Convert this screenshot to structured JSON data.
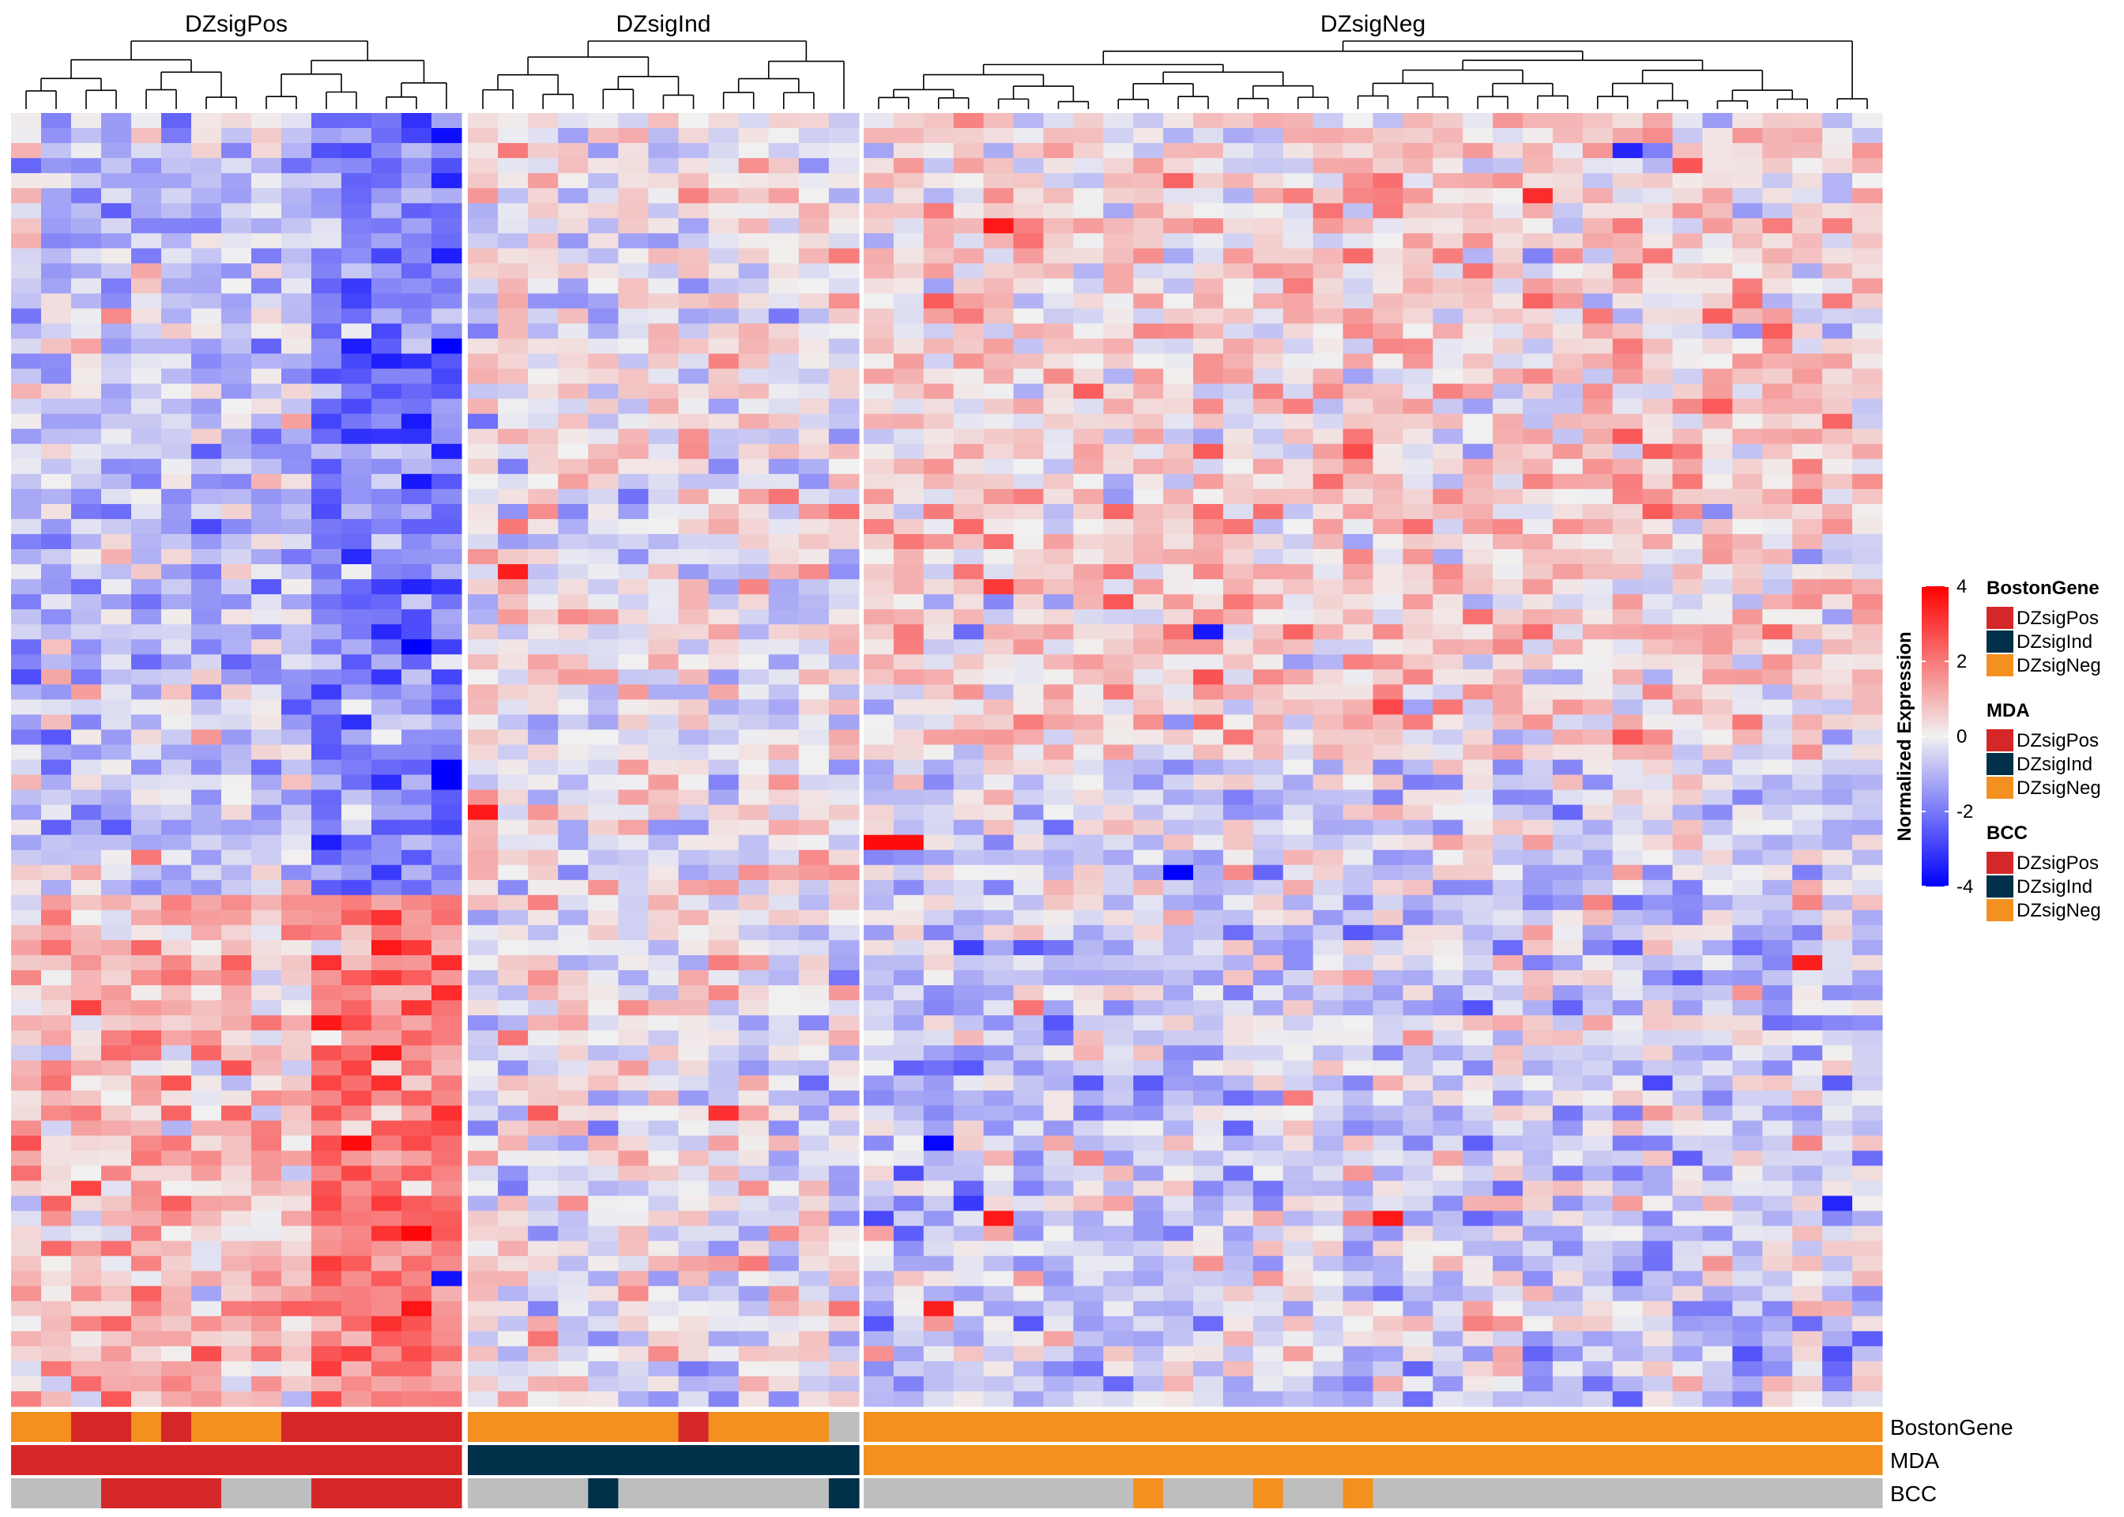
{
  "chart_data": {
    "type": "heatmap",
    "title": "",
    "groups": [
      "DZsigPos",
      "DZsigInd",
      "DZsigNeg"
    ],
    "colorbar": {
      "title": "Normalized Expression",
      "range": [
        -4,
        4
      ],
      "ticks": [
        "4",
        "2",
        "0",
        "-2",
        "-4"
      ],
      "low": "#0000ff",
      "mid": "#f1f1f1",
      "high": "#ff0000"
    },
    "annotation_rows": [
      {
        "name": "BostonGene",
        "runs": [
          {
            "group": "DZsigPos",
            "cat": [
              "O",
              "O",
              "R",
              "R",
              "O",
              "R",
              "O",
              "O",
              "O",
              "R",
              "R",
              "R",
              "R",
              "R",
              "R"
            ]
          },
          {
            "group": "DZsigInd",
            "cat": [
              "O",
              "O",
              "O",
              "O",
              "O",
              "O",
              "O",
              "R",
              "O",
              "O",
              "O",
              "O",
              "G"
            ]
          },
          {
            "group": "DZsigNeg",
            "cat": "O"
          }
        ]
      },
      {
        "name": "MDA",
        "runs": [
          {
            "group": "DZsigPos",
            "cat": "R"
          },
          {
            "group": "DZsigInd",
            "cat": "N"
          },
          {
            "group": "DZsigNeg",
            "cat": "O"
          }
        ]
      },
      {
        "name": "BCC",
        "runs": [
          {
            "group": "DZsigPos",
            "cat": [
              "G",
              "G",
              "G",
              "R",
              "R",
              "R",
              "R",
              "G",
              "G",
              "G",
              "R",
              "R",
              "R",
              "R",
              "R"
            ]
          },
          {
            "group": "DZsigInd",
            "cat": [
              "G",
              "G",
              "G",
              "G",
              "N",
              "G",
              "G",
              "G",
              "G",
              "G",
              "G",
              "G",
              "N"
            ]
          },
          {
            "group": "DZsigNeg",
            "cat": [
              "G",
              "G",
              "G",
              "G",
              "G",
              "G",
              "G",
              "G",
              "G",
              "O",
              "G",
              "G",
              "G",
              "O",
              "G",
              "G",
              "O",
              "G",
              "G",
              "G",
              "G",
              "G",
              "G",
              "G",
              "G",
              "G",
              "G",
              "G",
              "G",
              "G",
              "G",
              "G",
              "G",
              "G"
            ]
          }
        ]
      }
    ],
    "legends": [
      {
        "title": "BostonGene",
        "items": [
          "DZsigPos",
          "DZsigInd",
          "DZsigNeg"
        ]
      },
      {
        "title": "MDA",
        "items": [
          "DZsigPos",
          "DZsigInd",
          "DZsigNeg"
        ]
      },
      {
        "title": "BCC",
        "items": [
          "DZsigPos",
          "DZsigInd",
          "DZsigNeg"
        ]
      }
    ],
    "category_colors": {
      "R": "#d62728",
      "N": "#00304a",
      "O": "#f39020",
      "G": "#bebebe"
    },
    "n_rows": 86,
    "columns_per_group": [
      15,
      13,
      34
    ],
    "dendrogram": "hierarchical clustering of samples within each group (shown, values not printed)",
    "values_note": "cell values are z-scored expression in [-4,4]; individual values are not printed on the figure",
    "matrix": {
      "blocks": [
        {
          "group": "DZsigPos",
          "rows": [
            0,
            51
          ],
          "cols": [
            [
              0,
              9,
              -0.7
            ],
            [
              10,
              14,
              -1.9
            ]
          ]
        },
        {
          "group": "DZsigPos",
          "rows": [
            52,
            85
          ],
          "cols": [
            [
              0,
              9,
              0.8
            ],
            [
              10,
              14,
              1.9
            ]
          ]
        },
        {
          "group": "DZsigInd",
          "rows": [
            0,
            85
          ],
          "cols": [
            [
              0,
              12,
              0.0
            ]
          ]
        },
        {
          "group": "DZsigNeg",
          "rows": [
            0,
            42
          ],
          "cols": [
            [
              0,
              33,
              0.5
            ]
          ]
        },
        {
          "group": "DZsigNeg",
          "rows": [
            43,
            85
          ],
          "cols": [
            [
              0,
              33,
              -0.5
            ]
          ]
        }
      ],
      "notable_cells": [
        {
          "group": "DZsigPos",
          "row": 1,
          "col": 14,
          "v": -3.8
        },
        {
          "group": "DZsigPos",
          "row": 9,
          "col": 14,
          "v": -3.5
        },
        {
          "group": "DZsigPos",
          "row": 24,
          "col": 13,
          "v": -3.6
        },
        {
          "group": "DZsigPos",
          "row": 60,
          "col": 10,
          "v": 3.6
        },
        {
          "group": "DZsigPos",
          "row": 62,
          "col": 12,
          "v": 3.5
        },
        {
          "group": "DZsigPos",
          "row": 77,
          "col": 14,
          "v": -3.7
        },
        {
          "group": "DZsigInd",
          "row": 66,
          "col": 8,
          "v": 3.2
        },
        {
          "group": "DZsigInd",
          "row": 30,
          "col": 1,
          "v": 3.5
        },
        {
          "group": "DZsigInd",
          "row": 46,
          "col": 0,
          "v": 3.6
        },
        {
          "group": "DZsigNeg",
          "row": 7,
          "col": 4,
          "v": 3.6
        },
        {
          "group": "DZsigNeg",
          "row": 2,
          "col": 25,
          "v": -3.4
        },
        {
          "group": "DZsigNeg",
          "row": 48,
          "col": 0,
          "v": 3.8
        },
        {
          "group": "DZsigNeg",
          "row": 48,
          "col": 1,
          "v": 3.8
        },
        {
          "group": "DZsigNeg",
          "row": 50,
          "col": 10,
          "v": -4.0
        },
        {
          "group": "DZsigNeg",
          "row": 34,
          "col": 11,
          "v": -3.6
        },
        {
          "group": "DZsigNeg",
          "row": 56,
          "col": 31,
          "v": 3.5
        },
        {
          "group": "DZsigNeg",
          "row": 68,
          "col": 2,
          "v": -3.9
        },
        {
          "group": "DZsigNeg",
          "row": 73,
          "col": 4,
          "v": 3.6
        },
        {
          "group": "DZsigNeg",
          "row": 73,
          "col": 17,
          "v": 3.6
        },
        {
          "group": "DZsigNeg",
          "row": 79,
          "col": 2,
          "v": 3.5
        }
      ]
    }
  }
}
